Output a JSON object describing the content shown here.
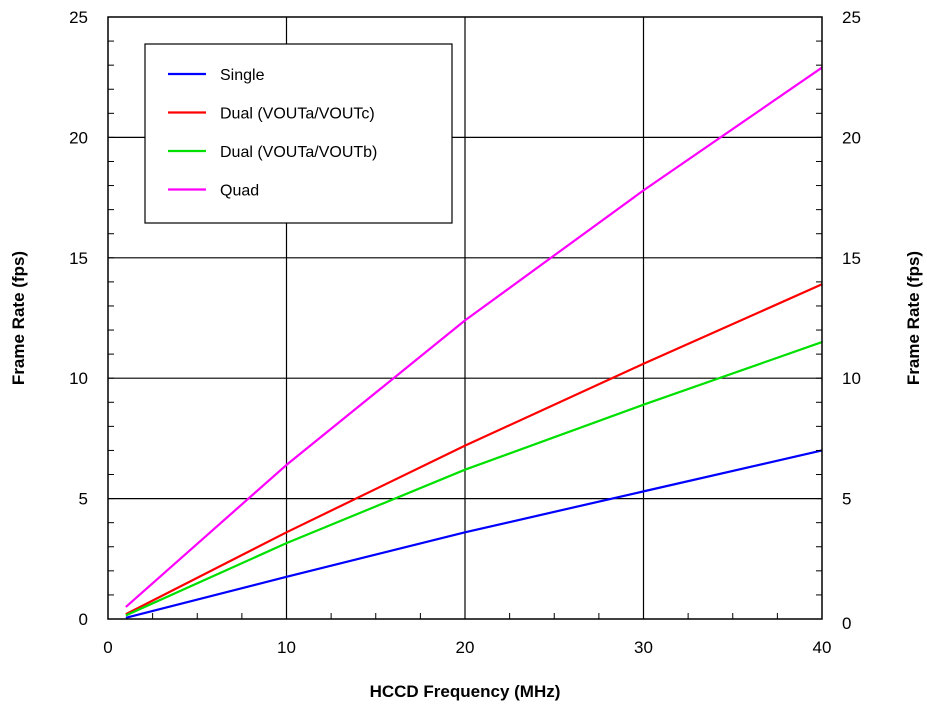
{
  "chart_data": {
    "type": "line",
    "title": "",
    "xlabel": "HCCD Frequency (MHz)",
    "ylabel_left": "Frame Rate (fps)",
    "ylabel_right": "Frame Rate (fps)",
    "xlim": [
      0,
      40
    ],
    "ylim": [
      0,
      25
    ],
    "x_ticks": [
      0,
      10,
      20,
      30,
      40
    ],
    "y_ticks": [
      0,
      5,
      10,
      15,
      20,
      25
    ],
    "grid": true,
    "legend_position": "top-left",
    "series": [
      {
        "name": "Single",
        "color": "#0000ff",
        "x": [
          1,
          10,
          20,
          30,
          40
        ],
        "y": [
          0.05,
          1.75,
          3.6,
          5.3,
          7.0
        ]
      },
      {
        "name": "Dual (VOUTa/VOUTc)",
        "color": "#ff0000",
        "x": [
          1,
          10,
          20,
          30,
          40
        ],
        "y": [
          0.2,
          3.6,
          7.2,
          10.6,
          13.9
        ]
      },
      {
        "name": "Dual (VOUTa/VOUTb)",
        "color": "#00e000",
        "x": [
          1,
          10,
          20,
          30,
          40
        ],
        "y": [
          0.15,
          3.15,
          6.2,
          8.9,
          11.5
        ]
      },
      {
        "name": "Quad",
        "color": "#ff00ff",
        "x": [
          1,
          10,
          20,
          30,
          40
        ],
        "y": [
          0.5,
          6.4,
          12.4,
          17.8,
          22.9
        ]
      }
    ]
  }
}
